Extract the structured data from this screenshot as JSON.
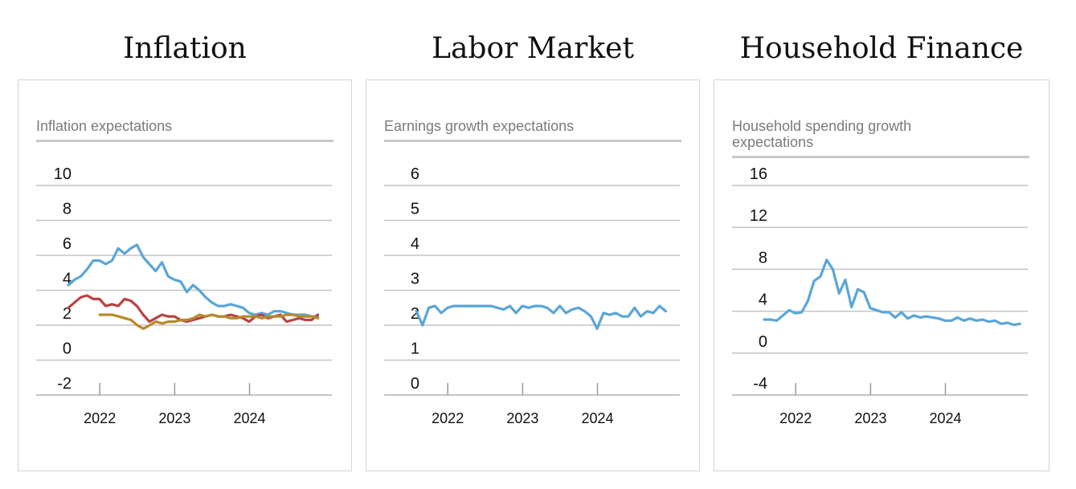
{
  "sections": [
    {
      "title": "Inflation",
      "subtitle": "Inflation expectations"
    },
    {
      "title": "Labor Market",
      "subtitle": "Earnings growth expectations"
    },
    {
      "title": "Household Finance",
      "subtitle": "Household spending growth expectations"
    }
  ],
  "colors": {
    "blue": "#5aa6d8",
    "red": "#b94343",
    "gold": "#b58a2a"
  },
  "chart_data": [
    {
      "type": "line",
      "title": "Inflation expectations",
      "y_ticks": [
        {
          "label": "10",
          "value": 10
        },
        {
          "label": "8",
          "value": 8
        },
        {
          "label": "6",
          "value": 6
        },
        {
          "label": "4",
          "value": 4
        },
        {
          "label": "2",
          "value": 2
        },
        {
          "label": "0",
          "value": 0
        },
        {
          "label": "-2",
          "value": -2
        }
      ],
      "ylim": [
        -3,
        11
      ],
      "x_ticks": [
        {
          "label": "2022",
          "value": 2022.0
        },
        {
          "label": "2023",
          "value": 2023.0
        },
        {
          "label": "2024",
          "value": 2024.0
        }
      ],
      "xlim": [
        2021.15,
        2025.1
      ],
      "grid": true,
      "series": [
        {
          "color": "#5aa6d8",
          "x_start": 2021.58,
          "x_step": 0.0833,
          "values": [
            4.3,
            4.6,
            4.8,
            5.2,
            5.7,
            5.7,
            5.5,
            5.7,
            6.4,
            6.1,
            6.4,
            6.6,
            5.9,
            5.5,
            5.1,
            5.6,
            4.8,
            4.6,
            4.5,
            3.9,
            4.3,
            4.0,
            3.6,
            3.3,
            3.1,
            3.1,
            3.2,
            3.1,
            3.0,
            2.7,
            2.6,
            2.7,
            2.6,
            2.8,
            2.8,
            2.7,
            2.6,
            2.6,
            2.6,
            2.5,
            2.5
          ]
        },
        {
          "color": "#b94343",
          "x_start": 2021.58,
          "x_step": 0.0833,
          "values": [
            3.0,
            3.3,
            3.6,
            3.7,
            3.5,
            3.5,
            3.1,
            3.2,
            3.1,
            3.5,
            3.4,
            3.1,
            2.6,
            2.2,
            2.4,
            2.6,
            2.5,
            2.5,
            2.3,
            2.2,
            2.3,
            2.4,
            2.5,
            2.6,
            2.5,
            2.5,
            2.6,
            2.5,
            2.4,
            2.2,
            2.5,
            2.6,
            2.4,
            2.5,
            2.6,
            2.2,
            2.3,
            2.4,
            2.3,
            2.3,
            2.6
          ]
        },
        {
          "color": "#b58a2a",
          "x_start": 2022.0,
          "x_step": 0.0833,
          "values": [
            2.6,
            2.6,
            2.6,
            2.5,
            2.4,
            2.3,
            2.0,
            1.8,
            2.0,
            2.2,
            2.1,
            2.2,
            2.2,
            2.3,
            2.3,
            2.4,
            2.6,
            2.5,
            2.6,
            2.5,
            2.5,
            2.4,
            2.4,
            2.5,
            2.5,
            2.5,
            2.4,
            2.5,
            2.5,
            2.5,
            2.6,
            2.6,
            2.5,
            2.5,
            2.5,
            2.4
          ]
        }
      ]
    },
    {
      "type": "line",
      "title": "Earnings growth expectations",
      "y_ticks": [
        {
          "label": "6",
          "value": 6
        },
        {
          "label": "5",
          "value": 5
        },
        {
          "label": "4",
          "value": 4
        },
        {
          "label": "3",
          "value": 3
        },
        {
          "label": "2",
          "value": 2
        },
        {
          "label": "1",
          "value": 1
        },
        {
          "label": "0",
          "value": 0
        }
      ],
      "ylim": [
        -0.5,
        6.5
      ],
      "x_ticks": [
        {
          "label": "2022",
          "value": 2022.0
        },
        {
          "label": "2023",
          "value": 2023.0
        },
        {
          "label": "2024",
          "value": 2024.0
        }
      ],
      "xlim": [
        2021.15,
        2025.1
      ],
      "grid": true,
      "series": [
        {
          "color": "#5aa6d8",
          "x_start": 2021.58,
          "x_step": 0.0833,
          "values": [
            2.4,
            2.0,
            2.5,
            2.55,
            2.35,
            2.5,
            2.55,
            2.55,
            2.55,
            2.55,
            2.55,
            2.55,
            2.55,
            2.5,
            2.45,
            2.55,
            2.35,
            2.55,
            2.5,
            2.55,
            2.55,
            2.5,
            2.35,
            2.55,
            2.35,
            2.45,
            2.5,
            2.4,
            2.25,
            1.9,
            2.35,
            2.3,
            2.35,
            2.25,
            2.25,
            2.5,
            2.25,
            2.4,
            2.35,
            2.55,
            2.4
          ]
        }
      ]
    },
    {
      "type": "line",
      "title": "Household spending growth expectations",
      "y_ticks": [
        {
          "label": "16",
          "value": 16
        },
        {
          "label": "12",
          "value": 12
        },
        {
          "label": "8",
          "value": 8
        },
        {
          "label": "4",
          "value": 4
        },
        {
          "label": "0",
          "value": 0
        },
        {
          "label": "-4",
          "value": -4
        }
      ],
      "ylim": [
        -5.5,
        17.5
      ],
      "x_ticks": [
        {
          "label": "2022",
          "value": 2022.0
        },
        {
          "label": "2023",
          "value": 2023.0
        },
        {
          "label": "2024",
          "value": 2024.0
        }
      ],
      "xlim": [
        2021.15,
        2025.1
      ],
      "grid": true,
      "series": [
        {
          "color": "#5aa6d8",
          "x_start": 2021.58,
          "x_step": 0.0833,
          "values": [
            3.2,
            3.2,
            3.1,
            3.6,
            4.1,
            3.8,
            3.9,
            5.0,
            6.9,
            7.3,
            8.9,
            8.0,
            5.7,
            7.0,
            4.4,
            6.1,
            5.8,
            4.3,
            4.1,
            3.9,
            3.9,
            3.4,
            3.9,
            3.3,
            3.6,
            3.4,
            3.5,
            3.4,
            3.3,
            3.1,
            3.1,
            3.4,
            3.1,
            3.3,
            3.1,
            3.2,
            3.0,
            3.1,
            2.8,
            2.9,
            2.7,
            2.8
          ]
        }
      ]
    }
  ]
}
